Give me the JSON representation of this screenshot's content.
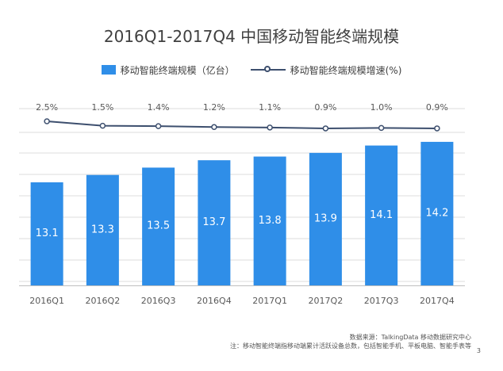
{
  "title": "2016Q1-2017Q4 中国移动智能终端规模",
  "legend": {
    "bar_label": "移动智能终端规模（亿台）",
    "line_label": "移动智能终端规模增速(%)"
  },
  "colors": {
    "bar": "#2f8ee8",
    "line": "#3d4f6e",
    "grid": "#dcdcdc"
  },
  "chart_data": {
    "type": "bar",
    "title": "2016Q1-2017Q4 中国移动智能终端规模",
    "categories": [
      "2016Q1",
      "2016Q2",
      "2016Q3",
      "2016Q4",
      "2017Q1",
      "2017Q2",
      "2017Q3",
      "2017Q4"
    ],
    "series": [
      {
        "name": "移动智能终端规模（亿台）",
        "type": "bar",
        "values": [
          13.1,
          13.3,
          13.5,
          13.7,
          13.8,
          13.9,
          14.1,
          14.2
        ],
        "labels": [
          "13.1",
          "13.3",
          "13.5",
          "13.7",
          "13.8",
          "13.9",
          "14.1",
          "14.2"
        ]
      },
      {
        "name": "移动智能终端规模增速(%)",
        "type": "line",
        "values": [
          2.5,
          1.5,
          1.4,
          1.2,
          1.1,
          0.9,
          1.0,
          0.9
        ],
        "labels": [
          "2.5%",
          "1.5%",
          "1.4%",
          "1.2%",
          "1.1%",
          "0.9%",
          "1.0%",
          "0.9%"
        ]
      }
    ],
    "ylim": [
      0,
      14.5
    ],
    "grid": true,
    "legend_position": "top"
  },
  "footer": {
    "source": "数据来源：TalkingData 移动数据研究中心",
    "note": "注：移动智能终端指移动端累计活跃设备总数，包括智能手机、平板电脑、智能手表等",
    "page_number": "3"
  }
}
